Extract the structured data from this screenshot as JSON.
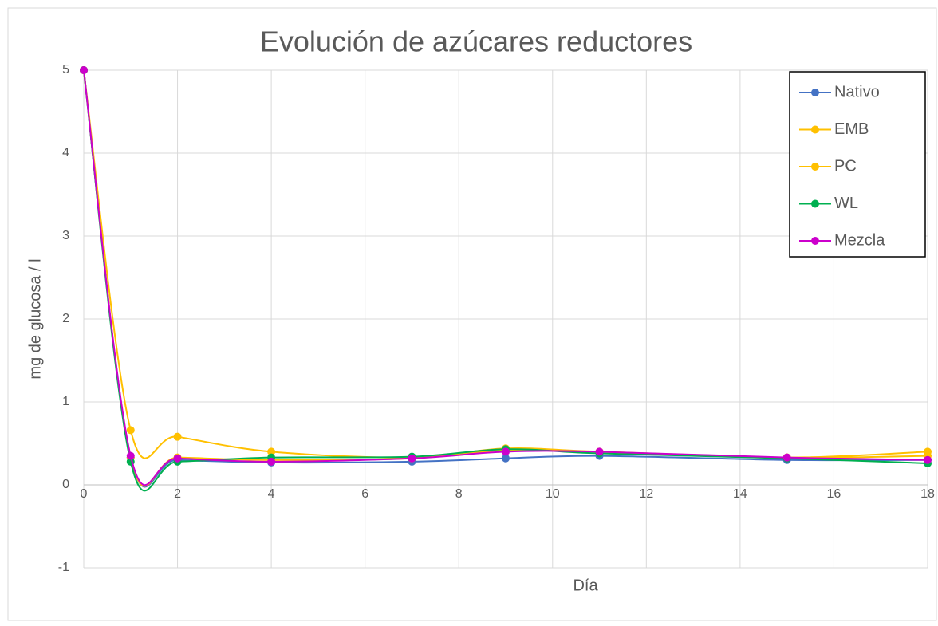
{
  "chart_data": {
    "type": "line",
    "title": "Evolución de azúcares reductores",
    "xlabel": "Día",
    "ylabel": "mg de glucosa / l",
    "x": [
      0,
      1,
      2,
      4,
      7,
      9,
      11,
      15,
      18
    ],
    "series": [
      {
        "name": "Nativo",
        "color": "#4472c4",
        "values": [
          5,
          0.33,
          0.3,
          0.27,
          0.28,
          0.32,
          0.35,
          0.3,
          0.3
        ]
      },
      {
        "name": "EMB",
        "color": "#ffc000",
        "values": [
          5,
          0.66,
          0.58,
          0.4,
          0.33,
          0.44,
          0.4,
          0.33,
          0.4
        ]
      },
      {
        "name": "PC",
        "color": "#ffc000",
        "values": [
          5,
          0.33,
          0.33,
          0.3,
          0.32,
          0.42,
          0.4,
          0.33,
          0.35
        ]
      },
      {
        "name": "WL",
        "color": "#00b050",
        "values": [
          5,
          0.28,
          0.28,
          0.33,
          0.34,
          0.43,
          0.38,
          0.32,
          0.26
        ]
      },
      {
        "name": "Mezcla",
        "color": "#cc00cc",
        "values": [
          5,
          0.35,
          0.32,
          0.28,
          0.32,
          0.4,
          0.4,
          0.33,
          0.3
        ]
      }
    ],
    "xlim": [
      0,
      18
    ],
    "xticks": [
      0,
      2,
      4,
      6,
      8,
      10,
      12,
      14,
      16,
      18
    ],
    "ylim": [
      -1,
      5
    ],
    "yticks": [
      -1,
      0,
      1,
      2,
      3,
      4,
      5
    ],
    "grid": true,
    "smooth": true,
    "legend": "upper right"
  }
}
